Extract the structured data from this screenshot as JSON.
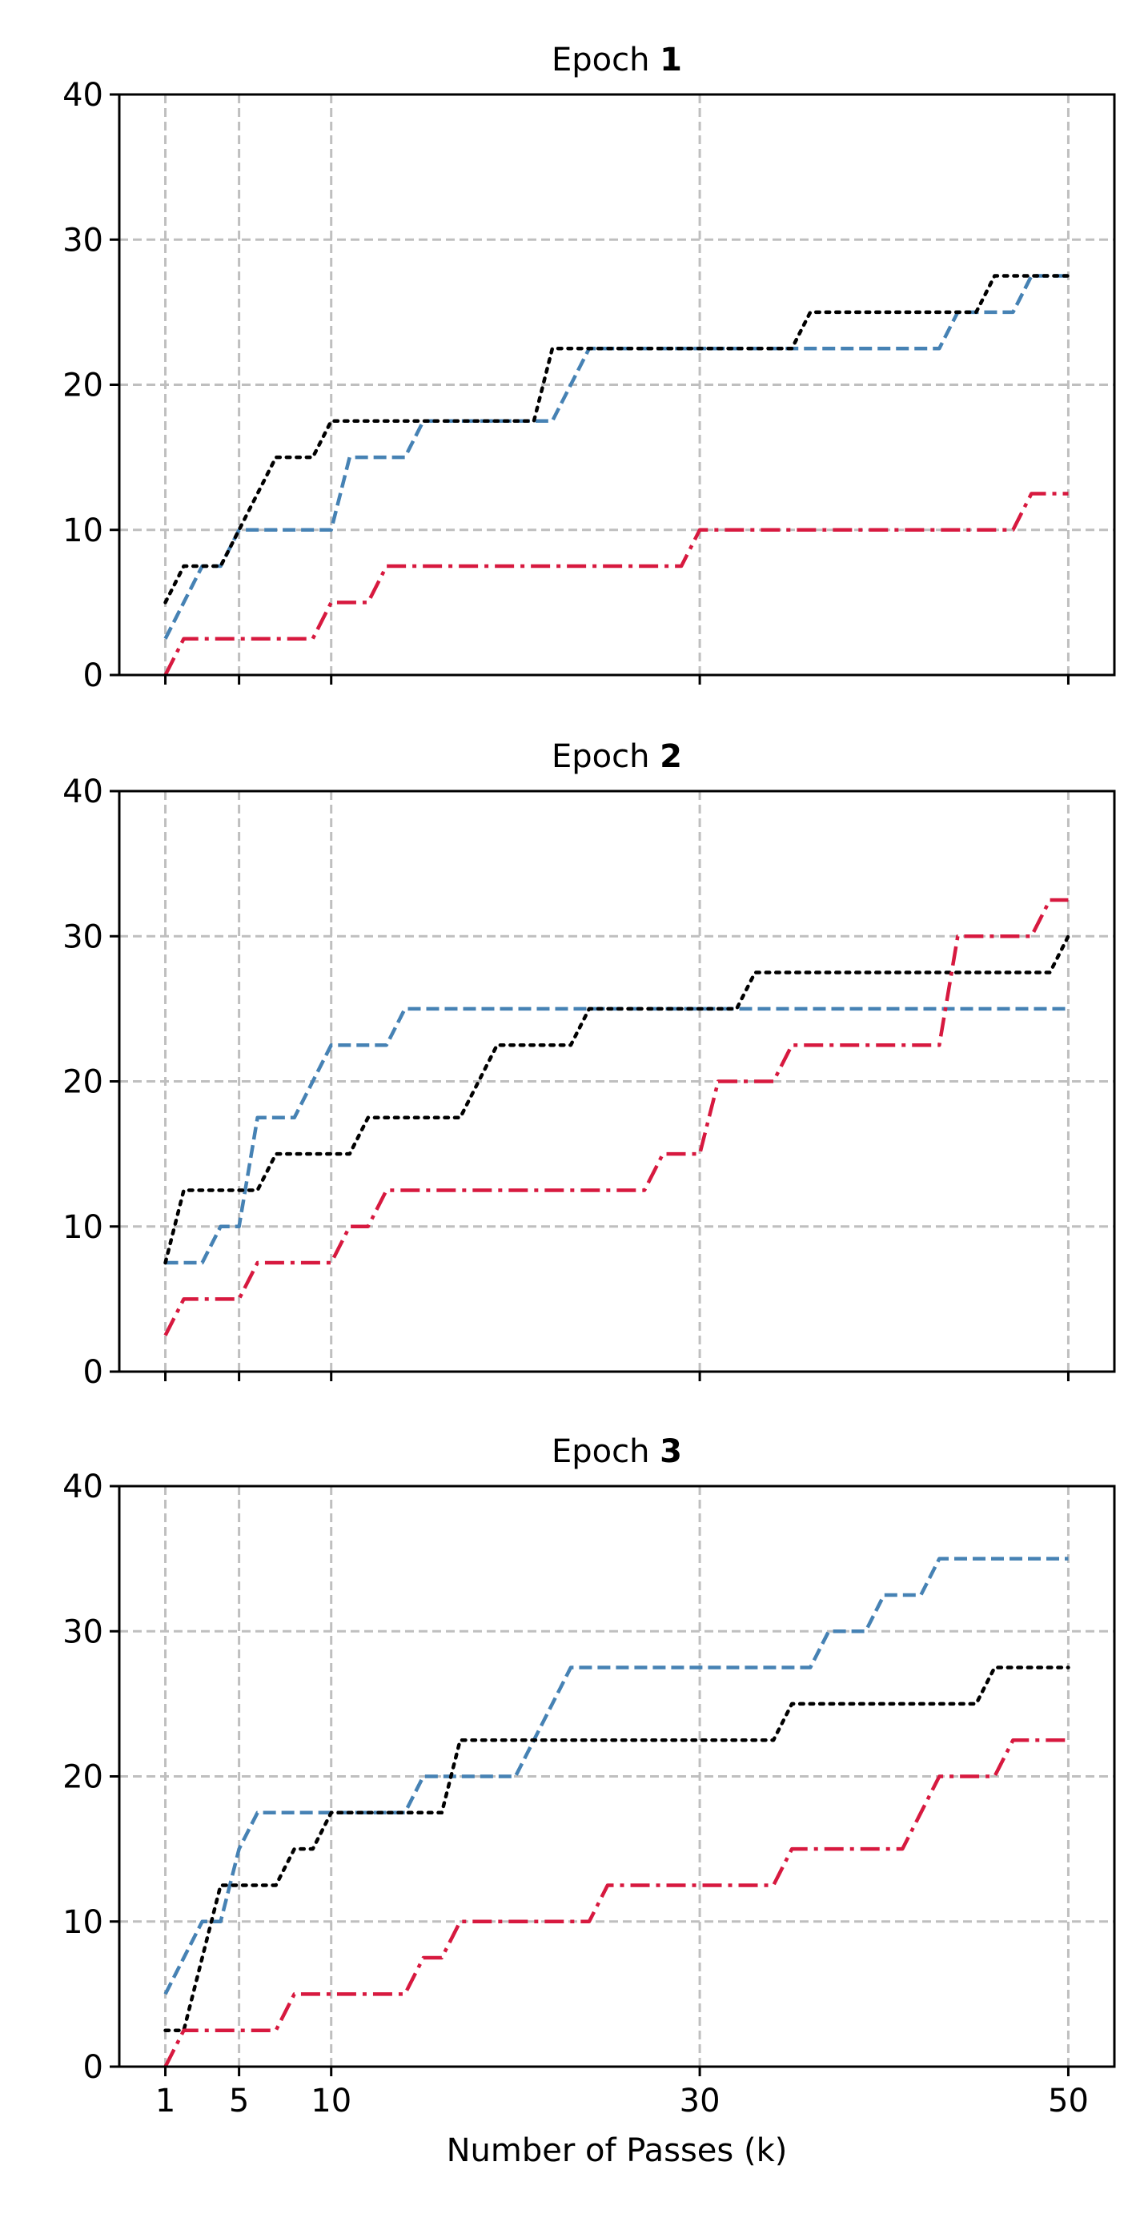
{
  "chart_data": [
    {
      "type": "line",
      "title_prefix": "Epoch ",
      "title_number": "1",
      "xlabel": "",
      "ylabel": "",
      "xlim": [
        -1.5,
        52.5
      ],
      "ylim": [
        0,
        40
      ],
      "xticks": [
        1,
        5,
        10,
        30,
        50
      ],
      "xtick_labels_visible": false,
      "yticks": [
        0,
        10,
        20,
        30,
        40
      ],
      "grid": true,
      "series": [
        {
          "style": "dashed",
          "color": "#4682b4",
          "x": [
            1,
            2,
            3,
            4,
            5,
            6,
            7,
            8,
            9,
            10,
            11,
            12,
            13,
            14,
            15,
            16,
            17,
            18,
            19,
            20,
            21,
            22,
            23,
            24,
            25,
            26,
            27,
            28,
            29,
            30,
            31,
            32,
            33,
            34,
            35,
            36,
            37,
            38,
            39,
            40,
            41,
            42,
            43,
            44,
            45,
            46,
            47,
            48,
            49,
            50
          ],
          "y": [
            2.5,
            5,
            7.5,
            7.5,
            10,
            10,
            10,
            10,
            10,
            10,
            15,
            15,
            15,
            15,
            17.5,
            17.5,
            17.5,
            17.5,
            17.5,
            17.5,
            17.5,
            17.5,
            20,
            22.5,
            22.5,
            22.5,
            22.5,
            22.5,
            22.5,
            22.5,
            22.5,
            22.5,
            22.5,
            22.5,
            22.5,
            22.5,
            22.5,
            22.5,
            22.5,
            22.5,
            22.5,
            22.5,
            22.5,
            25,
            25,
            25,
            25,
            27.5,
            27.5,
            27.5
          ]
        },
        {
          "style": "dotted",
          "color": "#000000",
          "x": [
            1,
            2,
            3,
            4,
            5,
            6,
            7,
            8,
            9,
            10,
            11,
            12,
            13,
            14,
            15,
            16,
            17,
            18,
            19,
            20,
            21,
            22,
            23,
            24,
            25,
            26,
            27,
            28,
            29,
            30,
            31,
            32,
            33,
            34,
            35,
            36,
            37,
            38,
            39,
            40,
            41,
            42,
            43,
            44,
            45,
            46,
            47,
            48,
            49,
            50
          ],
          "y": [
            5,
            7.5,
            7.5,
            7.5,
            10,
            12.5,
            15,
            15,
            15,
            17.5,
            17.5,
            17.5,
            17.5,
            17.5,
            17.5,
            17.5,
            17.5,
            17.5,
            17.5,
            17.5,
            17.5,
            22.5,
            22.5,
            22.5,
            22.5,
            22.5,
            22.5,
            22.5,
            22.5,
            22.5,
            22.5,
            22.5,
            22.5,
            22.5,
            22.5,
            25,
            25,
            25,
            25,
            25,
            25,
            25,
            25,
            25,
            25,
            27.5,
            27.5,
            27.5,
            27.5,
            27.5
          ]
        },
        {
          "style": "dashdot",
          "color": "#d7193f",
          "x": [
            1,
            2,
            3,
            4,
            5,
            6,
            7,
            8,
            9,
            10,
            11,
            12,
            13,
            14,
            15,
            16,
            17,
            18,
            19,
            20,
            21,
            22,
            23,
            24,
            25,
            26,
            27,
            28,
            29,
            30,
            31,
            32,
            33,
            34,
            35,
            36,
            37,
            38,
            39,
            40,
            41,
            42,
            43,
            44,
            45,
            46,
            47,
            48,
            49,
            50
          ],
          "y": [
            0,
            2.5,
            2.5,
            2.5,
            2.5,
            2.5,
            2.5,
            2.5,
            2.5,
            5,
            5,
            5,
            7.5,
            7.5,
            7.5,
            7.5,
            7.5,
            7.5,
            7.5,
            7.5,
            7.5,
            7.5,
            7.5,
            7.5,
            7.5,
            7.5,
            7.5,
            7.5,
            7.5,
            10,
            10,
            10,
            10,
            10,
            10,
            10,
            10,
            10,
            10,
            10,
            10,
            10,
            10,
            10,
            10,
            10,
            10,
            12.5,
            12.5,
            12.5
          ]
        }
      ]
    },
    {
      "type": "line",
      "title_prefix": "Epoch ",
      "title_number": "2",
      "xlabel": "",
      "ylabel": "",
      "xlim": [
        -1.5,
        52.5
      ],
      "ylim": [
        0,
        40
      ],
      "xticks": [
        1,
        5,
        10,
        30,
        50
      ],
      "xtick_labels_visible": false,
      "yticks": [
        0,
        10,
        20,
        30,
        40
      ],
      "grid": true,
      "series": [
        {
          "style": "dashed",
          "color": "#4682b4",
          "x": [
            1,
            2,
            3,
            4,
            5,
            6,
            7,
            8,
            9,
            10,
            11,
            12,
            13,
            14,
            15,
            16,
            17,
            18,
            19,
            20,
            21,
            22,
            23,
            24,
            25,
            26,
            27,
            28,
            29,
            30,
            31,
            32,
            33,
            34,
            35,
            36,
            37,
            38,
            39,
            40,
            41,
            42,
            43,
            44,
            45,
            46,
            47,
            48,
            49,
            50
          ],
          "y": [
            7.5,
            7.5,
            7.5,
            10,
            10,
            17.5,
            17.5,
            17.5,
            20,
            22.5,
            22.5,
            22.5,
            22.5,
            25,
            25,
            25,
            25,
            25,
            25,
            25,
            25,
            25,
            25,
            25,
            25,
            25,
            25,
            25,
            25,
            25,
            25,
            25,
            25,
            25,
            25,
            25,
            25,
            25,
            25,
            25,
            25,
            25,
            25,
            25,
            25,
            25,
            25,
            25,
            25,
            25
          ]
        },
        {
          "style": "dotted",
          "color": "#000000",
          "x": [
            1,
            2,
            3,
            4,
            5,
            6,
            7,
            8,
            9,
            10,
            11,
            12,
            13,
            14,
            15,
            16,
            17,
            18,
            19,
            20,
            21,
            22,
            23,
            24,
            25,
            26,
            27,
            28,
            29,
            30,
            31,
            32,
            33,
            34,
            35,
            36,
            37,
            38,
            39,
            40,
            41,
            42,
            43,
            44,
            45,
            46,
            47,
            48,
            49,
            50
          ],
          "y": [
            7.5,
            12.5,
            12.5,
            12.5,
            12.5,
            12.5,
            15,
            15,
            15,
            15,
            15,
            17.5,
            17.5,
            17.5,
            17.5,
            17.5,
            17.5,
            20,
            22.5,
            22.5,
            22.5,
            22.5,
            22.5,
            25,
            25,
            25,
            25,
            25,
            25,
            25,
            25,
            25,
            27.5,
            27.5,
            27.5,
            27.5,
            27.5,
            27.5,
            27.5,
            27.5,
            27.5,
            27.5,
            27.5,
            27.5,
            27.5,
            27.5,
            27.5,
            27.5,
            27.5,
            30
          ]
        },
        {
          "style": "dashdot",
          "color": "#d7193f",
          "x": [
            1,
            2,
            3,
            4,
            5,
            6,
            7,
            8,
            9,
            10,
            11,
            12,
            13,
            14,
            15,
            16,
            17,
            18,
            19,
            20,
            21,
            22,
            23,
            24,
            25,
            26,
            27,
            28,
            29,
            30,
            31,
            32,
            33,
            34,
            35,
            36,
            37,
            38,
            39,
            40,
            41,
            42,
            43,
            44,
            45,
            46,
            47,
            48,
            49,
            50
          ],
          "y": [
            2.5,
            5,
            5,
            5,
            5,
            7.5,
            7.5,
            7.5,
            7.5,
            7.5,
            10,
            10,
            12.5,
            12.5,
            12.5,
            12.5,
            12.5,
            12.5,
            12.5,
            12.5,
            12.5,
            12.5,
            12.5,
            12.5,
            12.5,
            12.5,
            12.5,
            15,
            15,
            15,
            20,
            20,
            20,
            20,
            22.5,
            22.5,
            22.5,
            22.5,
            22.5,
            22.5,
            22.5,
            22.5,
            22.5,
            30,
            30,
            30,
            30,
            30,
            32.5,
            32.5
          ]
        }
      ]
    },
    {
      "type": "line",
      "title_prefix": "Epoch ",
      "title_number": "3",
      "xlabel": "Number of Passes (k)",
      "ylabel": "",
      "xlim": [
        -1.5,
        52.5
      ],
      "ylim": [
        0,
        40
      ],
      "xticks": [
        1,
        5,
        10,
        30,
        50
      ],
      "xtick_labels_visible": true,
      "yticks": [
        0,
        10,
        20,
        30,
        40
      ],
      "grid": true,
      "series": [
        {
          "style": "dashed",
          "color": "#4682b4",
          "x": [
            1,
            2,
            3,
            4,
            5,
            6,
            7,
            8,
            9,
            10,
            11,
            12,
            13,
            14,
            15,
            16,
            17,
            18,
            19,
            20,
            21,
            22,
            23,
            24,
            25,
            26,
            27,
            28,
            29,
            30,
            31,
            32,
            33,
            34,
            35,
            36,
            37,
            38,
            39,
            40,
            41,
            42,
            43,
            44,
            45,
            46,
            47,
            48,
            49,
            50
          ],
          "y": [
            5,
            7.5,
            10,
            10,
            15,
            17.5,
            17.5,
            17.5,
            17.5,
            17.5,
            17.5,
            17.5,
            17.5,
            17.5,
            20,
            20,
            20,
            20,
            20,
            20,
            22.5,
            25,
            27.5,
            27.5,
            27.5,
            27.5,
            27.5,
            27.5,
            27.5,
            27.5,
            27.5,
            27.5,
            27.5,
            27.5,
            27.5,
            27.5,
            30,
            30,
            30,
            32.5,
            32.5,
            32.5,
            35,
            35,
            35,
            35,
            35,
            35,
            35,
            35
          ]
        },
        {
          "style": "dotted",
          "color": "#000000",
          "x": [
            1,
            2,
            3,
            4,
            5,
            6,
            7,
            8,
            9,
            10,
            11,
            12,
            13,
            14,
            15,
            16,
            17,
            18,
            19,
            20,
            21,
            22,
            23,
            24,
            25,
            26,
            27,
            28,
            29,
            30,
            31,
            32,
            33,
            34,
            35,
            36,
            37,
            38,
            39,
            40,
            41,
            42,
            43,
            44,
            45,
            46,
            47,
            48,
            49,
            50
          ],
          "y": [
            2.5,
            2.5,
            7.5,
            12.5,
            12.5,
            12.5,
            12.5,
            15,
            15,
            17.5,
            17.5,
            17.5,
            17.5,
            17.5,
            17.5,
            17.5,
            22.5,
            22.5,
            22.5,
            22.5,
            22.5,
            22.5,
            22.5,
            22.5,
            22.5,
            22.5,
            22.5,
            22.5,
            22.5,
            22.5,
            22.5,
            22.5,
            22.5,
            22.5,
            25,
            25,
            25,
            25,
            25,
            25,
            25,
            25,
            25,
            25,
            25,
            27.5,
            27.5,
            27.5,
            27.5,
            27.5
          ]
        },
        {
          "style": "dashdot",
          "color": "#d7193f",
          "x": [
            1,
            2,
            3,
            4,
            5,
            6,
            7,
            8,
            9,
            10,
            11,
            12,
            13,
            14,
            15,
            16,
            17,
            18,
            19,
            20,
            21,
            22,
            23,
            24,
            25,
            26,
            27,
            28,
            29,
            30,
            31,
            32,
            33,
            34,
            35,
            36,
            37,
            38,
            39,
            40,
            41,
            42,
            43,
            44,
            45,
            46,
            47,
            48,
            49,
            50
          ],
          "y": [
            0,
            2.5,
            2.5,
            2.5,
            2.5,
            2.5,
            2.5,
            5,
            5,
            5,
            5,
            5,
            5,
            5,
            7.5,
            7.5,
            10,
            10,
            10,
            10,
            10,
            10,
            10,
            10,
            12.5,
            12.5,
            12.5,
            12.5,
            12.5,
            12.5,
            12.5,
            12.5,
            12.5,
            12.5,
            15,
            15,
            15,
            15,
            15,
            15,
            15,
            17.5,
            20,
            20,
            20,
            20,
            22.5,
            22.5,
            22.5,
            22.5
          ]
        }
      ]
    }
  ]
}
